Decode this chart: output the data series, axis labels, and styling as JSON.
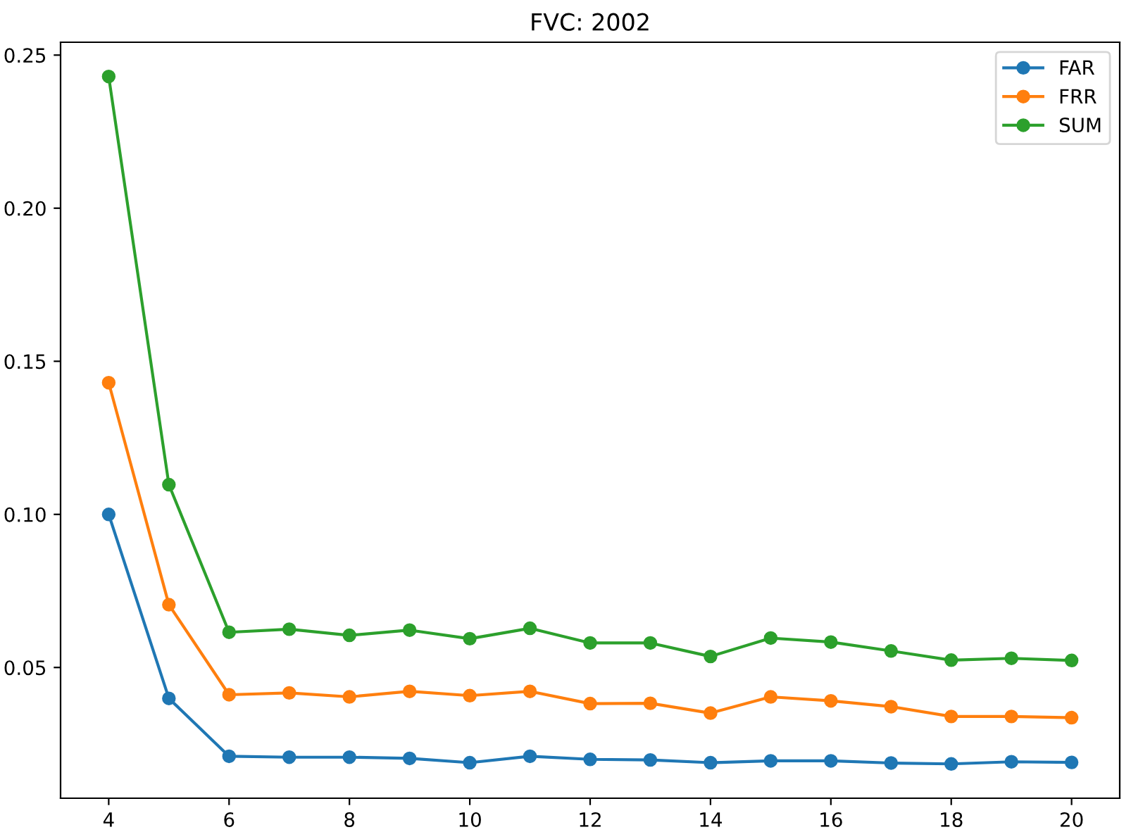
{
  "chart_data": {
    "type": "line",
    "title": "FVC: 2002",
    "x": [
      4,
      5,
      6,
      7,
      8,
      9,
      10,
      11,
      12,
      13,
      14,
      15,
      16,
      17,
      18,
      19,
      20
    ],
    "series": [
      {
        "name": "FAR",
        "color": "#1f77b4",
        "values": [
          0.1,
          0.0399,
          0.021,
          0.0207,
          0.0207,
          0.0203,
          0.0189,
          0.021,
          0.02,
          0.0198,
          0.0189,
          0.0195,
          0.0195,
          0.0188,
          0.0185,
          0.0192,
          0.019
        ]
      },
      {
        "name": "FRR",
        "color": "#ff7f0e",
        "values": [
          0.143,
          0.0705,
          0.0411,
          0.0417,
          0.0404,
          0.0422,
          0.0408,
          0.0422,
          0.0382,
          0.0383,
          0.0351,
          0.0404,
          0.0391,
          0.0372,
          0.034,
          0.034,
          0.0336
        ]
      },
      {
        "name": "SUM",
        "color": "#2ca02c",
        "values": [
          0.243,
          0.1097,
          0.0615,
          0.0625,
          0.0605,
          0.0622,
          0.0594,
          0.0628,
          0.058,
          0.058,
          0.0536,
          0.0596,
          0.0583,
          0.0554,
          0.0524,
          0.053,
          0.0523
        ]
      }
    ],
    "xlim": [
      3.2,
      20.8
    ],
    "xticks": [
      4,
      6,
      8,
      10,
      12,
      14,
      16,
      18,
      20
    ],
    "ylim": [
      0.0073,
      0.2542
    ],
    "yticks": [
      {
        "value": 0.05,
        "label": "0.05"
      },
      {
        "value": 0.1,
        "label": "0.10"
      },
      {
        "value": 0.15,
        "label": "0.15"
      },
      {
        "value": 0.2,
        "label": "0.20"
      },
      {
        "value": 0.25,
        "label": "0.25"
      }
    ],
    "marker": "circle",
    "line_style": "solid",
    "legend": "top right",
    "grid": false
  }
}
